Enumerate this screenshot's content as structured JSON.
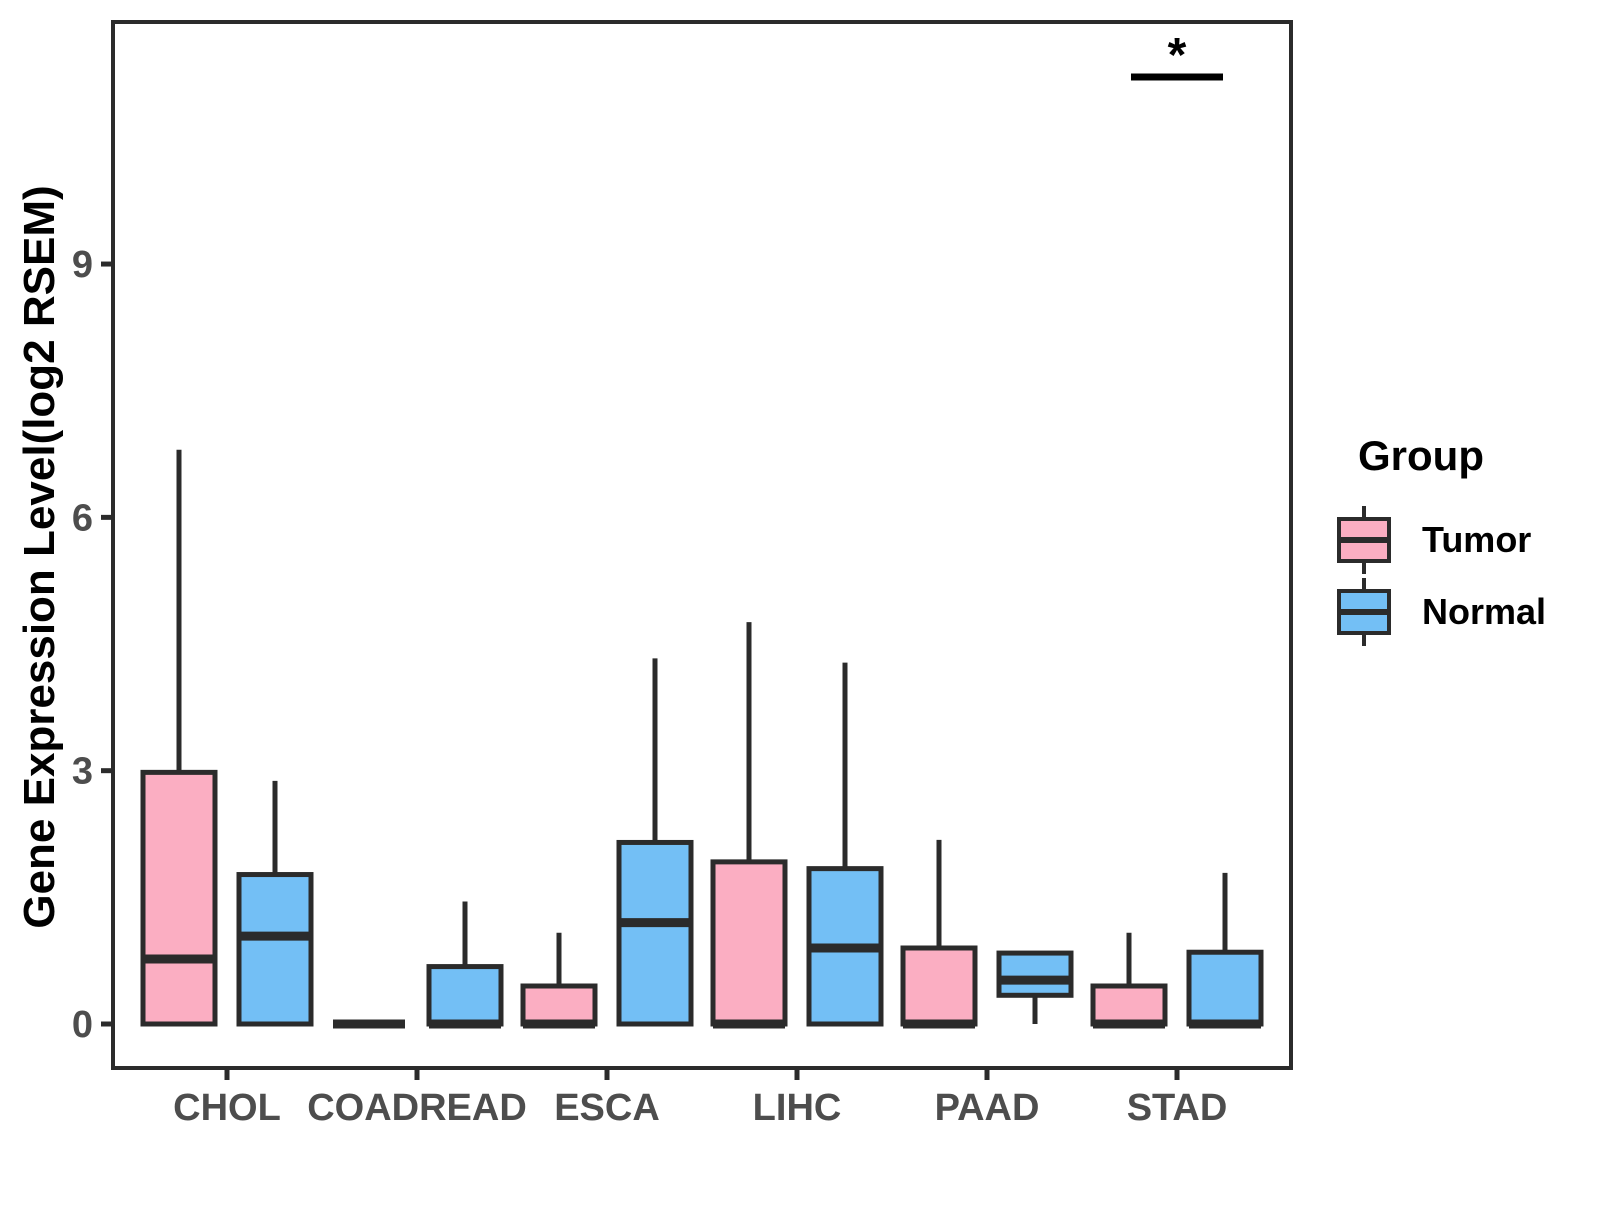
{
  "chart_data": {
    "type": "box",
    "title": "",
    "xlabel": "",
    "ylabel": "Gene Expression Level(log2 RSEM)",
    "y_ticks": [
      0,
      3,
      6,
      9
    ],
    "ylim": [
      -0.5,
      11.9
    ],
    "grid": false,
    "categories": [
      "CHOL",
      "COADREAD",
      "ESCA",
      "LIHC",
      "PAAD",
      "STAD"
    ],
    "legend": {
      "title": "Group",
      "position": "right"
    },
    "series": [
      {
        "name": "Tumor",
        "color": "#FBAEC2",
        "boxes": [
          {
            "category": "CHOL",
            "min": 0,
            "q1": 0,
            "median": 0.77,
            "q3": 2.98,
            "max": 6.8
          },
          {
            "category": "COADREAD",
            "min": 0,
            "q1": 0,
            "median": 0,
            "q3": 0,
            "max": 0
          },
          {
            "category": "ESCA",
            "min": 0,
            "q1": 0,
            "median": 0,
            "q3": 0.45,
            "max": 1.08
          },
          {
            "category": "LIHC",
            "min": 0,
            "q1": 0,
            "median": 0,
            "q3": 1.92,
            "max": 4.76
          },
          {
            "category": "PAAD",
            "min": 0,
            "q1": 0,
            "median": 0,
            "q3": 0.9,
            "max": 2.18
          },
          {
            "category": "STAD",
            "min": 0,
            "q1": 0,
            "median": 0,
            "q3": 0.45,
            "max": 1.08
          }
        ]
      },
      {
        "name": "Normal",
        "color": "#73BFF5",
        "boxes": [
          {
            "category": "CHOL",
            "min": 0,
            "q1": 0,
            "median": 1.04,
            "q3": 1.77,
            "max": 2.88
          },
          {
            "category": "COADREAD",
            "min": 0,
            "q1": 0,
            "median": 0,
            "q3": 0.68,
            "max": 1.45
          },
          {
            "category": "ESCA",
            "min": 0,
            "q1": 0,
            "median": 1.2,
            "q3": 2.15,
            "max": 4.33
          },
          {
            "category": "LIHC",
            "min": 0,
            "q1": 0,
            "median": 0.9,
            "q3": 1.84,
            "max": 4.28
          },
          {
            "category": "PAAD",
            "min": 0,
            "q1": 0.34,
            "median": 0.52,
            "q3": 0.84,
            "max": 0.84
          },
          {
            "category": "STAD",
            "min": 0,
            "q1": 0,
            "median": 0,
            "q3": 0.85,
            "max": 1.79
          }
        ]
      }
    ],
    "annotations": [
      {
        "type": "significance-bar",
        "label": "*",
        "category": "STAD",
        "spans": [
          "Tumor",
          "Normal"
        ]
      }
    ]
  },
  "styles": {
    "box_stroke": "#2B2B2B",
    "axis_stroke": "#2B2B2B",
    "tick_label_color": "#4D4D4D",
    "axis_title_color": "#000000",
    "background": "#FFFFFF"
  }
}
